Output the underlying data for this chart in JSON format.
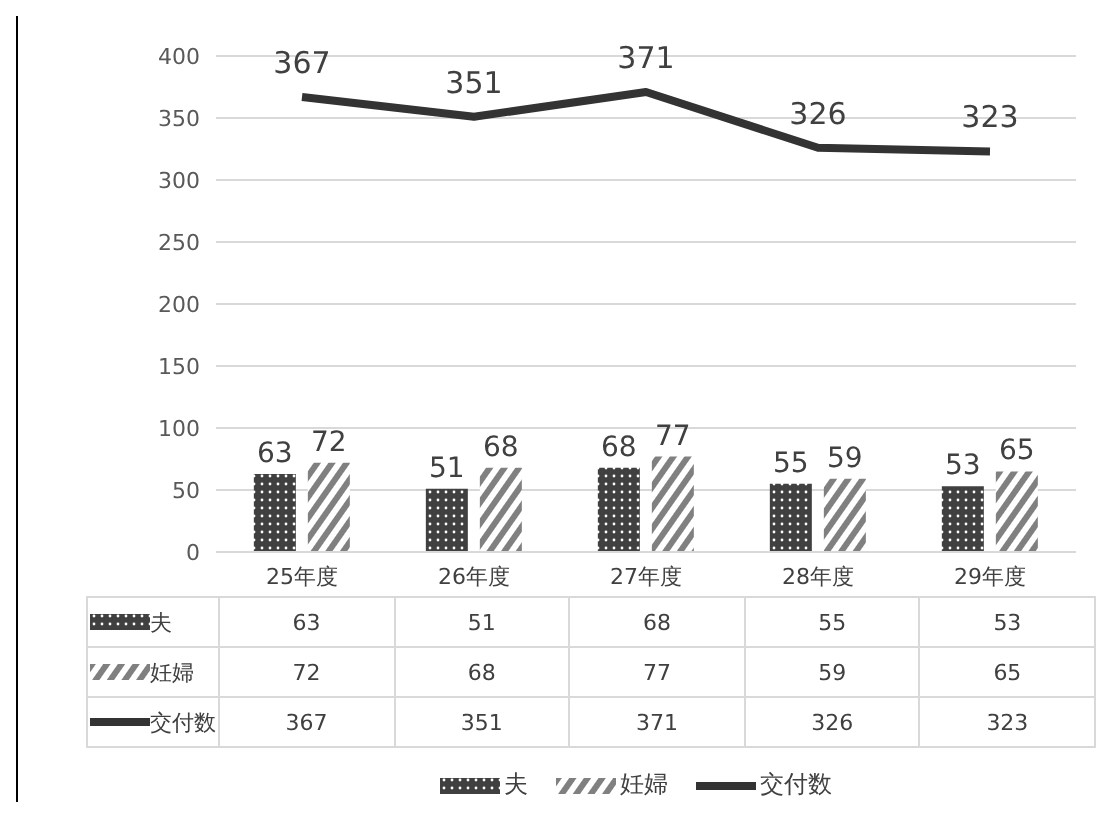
{
  "chart_data": {
    "type": "bar",
    "categories": [
      "25年度",
      "26年度",
      "27年度",
      "28年度",
      "29年度"
    ],
    "series": [
      {
        "name": "夫",
        "color": "#404040",
        "values": [
          63,
          51,
          68,
          55,
          53
        ],
        "value_labels": [
          "63",
          "51",
          "68",
          "55",
          "53"
        ]
      },
      {
        "name": "妊婦",
        "color": "#808080",
        "values": [
          72,
          68,
          77,
          59,
          65
        ],
        "value_labels": [
          "72",
          "68",
          "77",
          "59",
          "65"
        ]
      },
      {
        "name": "交付数",
        "type": "line",
        "color": "#333333",
        "values": [
          367,
          351,
          371,
          326,
          323
        ],
        "value_labels": [
          "367",
          "351",
          "371",
          "326",
          "323"
        ]
      }
    ],
    "ylim": [
      0,
      400
    ],
    "yticks": [
      0,
      50,
      100,
      150,
      200,
      250,
      300,
      350,
      400
    ],
    "grid": "y",
    "legend": "bottom",
    "marker": "none"
  }
}
